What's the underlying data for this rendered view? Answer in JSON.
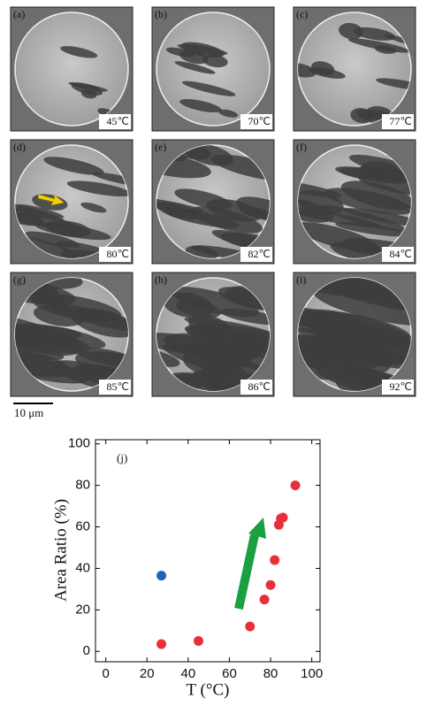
{
  "panels": [
    {
      "label": "(a)",
      "temperature": "45℃"
    },
    {
      "label": "(b)",
      "temperature": "70℃"
    },
    {
      "label": "(c)",
      "temperature": "77℃"
    },
    {
      "label": "(d)",
      "temperature": "80℃"
    },
    {
      "label": "(e)",
      "temperature": "82℃"
    },
    {
      "label": "(f)",
      "temperature": "84℃"
    },
    {
      "label": "(g)",
      "temperature": "85℃"
    },
    {
      "label": "(h)",
      "temperature": "86℃"
    },
    {
      "label": "(i)",
      "temperature": "92℃"
    }
  ],
  "scale_bar": "10 μm",
  "chart_data": {
    "type": "scatter",
    "annotation": "(j)",
    "x_label": "T (°C)",
    "y_label": "Area Ratio (%)",
    "series": [
      {
        "color": "#e8303a",
        "x": [
          27,
          45,
          70,
          77,
          80,
          82,
          84,
          85,
          86,
          92
        ],
        "values": [
          3.5,
          5,
          12,
          25,
          32,
          44,
          61,
          64,
          64.5,
          80
        ]
      },
      {
        "color": "#1a64b8",
        "x": [
          27
        ],
        "values": [
          36.5
        ]
      }
    ],
    "xlim": [
      -5,
      104
    ],
    "ylim": [
      -5,
      102
    ],
    "xticks": [
      0,
      20,
      40,
      60,
      80,
      100
    ],
    "yticks": [
      0,
      20,
      40,
      60,
      80,
      100
    ]
  }
}
